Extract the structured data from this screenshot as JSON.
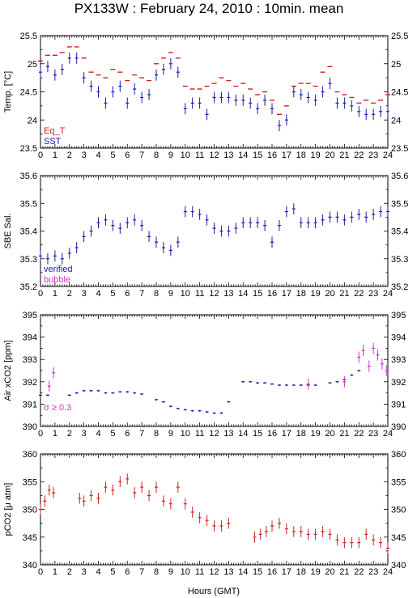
{
  "title": "PX133W : February 24, 2010 : 10min. mean",
  "colors": {
    "red": "#cc2222",
    "blue": "#1a1aaa",
    "magenta": "#cc33cc",
    "axis": "#000000"
  },
  "chart_data": [
    {
      "type": "scatter",
      "ylabel": "Temp. [°C]",
      "xlabel": "Hours (GMT)",
      "xlim": [
        0,
        24
      ],
      "ylim": [
        23.5,
        25.5
      ],
      "yticks": [
        "23.5",
        "24",
        "24.5",
        "25",
        "25.5"
      ],
      "xticks": [
        "0",
        "1",
        "2",
        "3",
        "4",
        "5",
        "6",
        "7",
        "8",
        "9",
        "10",
        "11",
        "12",
        "13",
        "14",
        "15",
        "16",
        "17",
        "18",
        "19",
        "20",
        "21",
        "22",
        "23",
        "24"
      ],
      "legend": [
        "Eq_T",
        "SST"
      ],
      "legend_position": "bottom-left",
      "series": [
        {
          "name": "Eq_T",
          "color": "#cc2222",
          "x": [
            0,
            0.5,
            1,
            1.5,
            2,
            2.5,
            3,
            3.5,
            4,
            4.5,
            5,
            5.5,
            6,
            6.5,
            7,
            7.5,
            8,
            8.5,
            9,
            9.5,
            10,
            10.5,
            11,
            11.5,
            12,
            12.5,
            13,
            13.5,
            14,
            14.5,
            15,
            15.5,
            16,
            16.5,
            17,
            17.5,
            18,
            18.5,
            19,
            19.5,
            20,
            20.5,
            21,
            21.5,
            22,
            22.5,
            23,
            23.5,
            24
          ],
          "values": [
            25.05,
            25.15,
            25.15,
            25.2,
            25.3,
            25.3,
            25.1,
            24.85,
            24.8,
            24.75,
            24.9,
            24.85,
            24.7,
            24.8,
            24.75,
            24.7,
            25.0,
            25.1,
            25.2,
            25.1,
            24.6,
            24.55,
            24.55,
            24.6,
            24.65,
            24.75,
            24.7,
            24.6,
            24.65,
            24.55,
            24.45,
            24.5,
            24.35,
            24.1,
            24.25,
            24.6,
            24.65,
            24.65,
            24.6,
            24.85,
            24.95,
            24.5,
            24.45,
            24.4,
            24.3,
            24.35,
            24.3,
            24.35,
            24.45
          ]
        },
        {
          "name": "SST",
          "color": "#1a1aaa",
          "x": [
            0,
            0.5,
            1,
            1.5,
            2,
            2.5,
            3,
            3.5,
            4,
            4.5,
            5,
            5.5,
            6,
            6.5,
            7,
            7.5,
            8,
            8.5,
            9,
            9.5,
            10,
            10.5,
            11,
            11.5,
            12,
            12.5,
            13,
            13.5,
            14,
            14.5,
            15,
            15.5,
            16,
            16.5,
            17,
            17.5,
            18,
            18.5,
            19,
            19.5,
            20,
            20.5,
            21,
            21.5,
            22,
            22.5,
            23,
            23.5,
            24
          ],
          "values": [
            24.85,
            24.95,
            24.8,
            24.9,
            25.1,
            25.1,
            24.75,
            24.6,
            24.5,
            24.3,
            24.5,
            24.6,
            24.3,
            24.55,
            24.4,
            24.45,
            24.8,
            24.9,
            25.0,
            24.85,
            24.2,
            24.3,
            24.3,
            24.1,
            24.4,
            24.4,
            24.4,
            24.35,
            24.35,
            24.3,
            24.2,
            24.35,
            24.2,
            23.9,
            24.0,
            24.5,
            24.45,
            24.4,
            24.35,
            24.5,
            24.65,
            24.3,
            24.3,
            24.25,
            24.15,
            24.1,
            24.1,
            24.15,
            24.15
          ]
        }
      ]
    },
    {
      "type": "scatter",
      "ylabel": "SBE Sal.",
      "xlim": [
        0,
        24
      ],
      "ylim": [
        35.2,
        35.6
      ],
      "yticks": [
        "35.2",
        "35.3",
        "35.4",
        "35.5",
        "35.6"
      ],
      "legend": [
        "verified",
        "bubble"
      ],
      "legend_position": "bottom-left",
      "series": [
        {
          "name": "verified",
          "color": "#1a1aaa",
          "x": [
            0,
            0.5,
            1,
            1.5,
            2,
            2.5,
            3,
            3.5,
            4,
            4.5,
            5,
            5.5,
            6,
            6.5,
            7,
            7.5,
            8,
            8.5,
            9,
            9.5,
            10,
            10.5,
            11,
            11.5,
            12,
            12.5,
            13,
            13.5,
            14,
            14.5,
            15,
            15.5,
            16,
            16.5,
            17,
            17.5,
            18,
            18.5,
            19,
            19.5,
            20,
            20.5,
            21,
            21.5,
            22,
            22.5,
            23,
            23.5,
            24
          ],
          "values": [
            35.31,
            35.3,
            35.31,
            35.3,
            35.32,
            35.34,
            35.38,
            35.4,
            35.43,
            35.44,
            35.42,
            35.41,
            35.43,
            35.44,
            35.42,
            35.38,
            35.36,
            35.34,
            35.33,
            35.36,
            35.47,
            35.47,
            35.46,
            35.44,
            35.41,
            35.4,
            35.4,
            35.41,
            35.43,
            35.43,
            35.43,
            35.42,
            35.36,
            35.42,
            35.47,
            35.48,
            35.43,
            35.43,
            35.43,
            35.44,
            35.45,
            35.45,
            35.44,
            35.45,
            35.46,
            35.45,
            35.46,
            35.47,
            35.47
          ]
        }
      ]
    },
    {
      "type": "scatter",
      "ylabel": "Air xCO2 [ppm]",
      "xlim": [
        0,
        24
      ],
      "ylim": [
        390,
        395
      ],
      "yticks": [
        "390",
        "391",
        "392",
        "393",
        "394",
        "395"
      ],
      "annotation": "σ ≥ 0.3",
      "series": [
        {
          "name": "",
          "color": "#1a1aaa",
          "x": [
            0,
            0.5,
            2,
            2.5,
            3,
            3.5,
            4,
            4.5,
            5,
            5.5,
            6,
            6.5,
            7,
            8,
            8.5,
            9,
            9.5,
            10,
            10.5,
            11,
            11.5,
            12,
            12.5,
            13,
            14,
            14.5,
            15,
            15.5,
            16,
            16.5,
            17,
            17.5,
            18,
            18.5,
            19,
            20,
            20.5,
            21,
            21.5,
            22
          ],
          "values": [
            391.4,
            391.4,
            391.4,
            391.5,
            391.6,
            391.6,
            391.6,
            391.5,
            391.5,
            391.55,
            391.55,
            391.5,
            391.45,
            391.2,
            391.1,
            390.9,
            390.8,
            390.75,
            390.7,
            390.7,
            390.65,
            390.6,
            390.6,
            391.1,
            392.0,
            392.0,
            391.95,
            391.95,
            391.9,
            391.85,
            391.85,
            391.85,
            391.85,
            391.85,
            391.85,
            391.95,
            392.0,
            392.1,
            392.3,
            392.5
          ]
        },
        {
          "name": "σ ≥ 0.3",
          "color": "#cc33cc",
          "x": [
            0.6,
            0.9,
            18.5,
            21,
            22,
            22.3,
            22.7,
            23,
            23.3,
            23.6,
            23.9
          ],
          "values": [
            391.8,
            392.4,
            391.9,
            392.0,
            393.1,
            393.4,
            392.7,
            393.5,
            393.2,
            392.8,
            392.5
          ]
        }
      ]
    },
    {
      "type": "scatter",
      "ylabel": "pCO2 [μ atm]",
      "xlabel": "Hours (GMT)",
      "xlim": [
        0,
        24
      ],
      "ylim": [
        340,
        360
      ],
      "yticks": [
        "340",
        "345",
        "350",
        "355",
        "360"
      ],
      "series": [
        {
          "name": "",
          "color": "#cc2222",
          "x": [
            0,
            0.3,
            0.6,
            0.9,
            2.7,
            3,
            3.5,
            4,
            4.5,
            5,
            5.5,
            6,
            6.5,
            7,
            7.5,
            8,
            8.5,
            9,
            9.5,
            10,
            10.5,
            11,
            11.5,
            12,
            12.5,
            13,
            14.8,
            15.2,
            15.6,
            16,
            16.5,
            17,
            17.5,
            18,
            18.5,
            19,
            19.5,
            20,
            20.5,
            21,
            21.5,
            22,
            22.5,
            23,
            23.5,
            24
          ],
          "values": [
            350,
            351.5,
            353.5,
            353,
            352,
            351.5,
            352.5,
            352,
            354,
            353.5,
            355,
            355.5,
            353,
            354,
            352.5,
            354,
            351.5,
            351,
            354,
            351,
            349.5,
            348.5,
            348,
            347,
            347,
            347.5,
            345,
            345.5,
            346,
            347,
            347.5,
            346.5,
            346,
            346,
            345.5,
            345.5,
            346,
            345.5,
            344.5,
            344,
            344,
            344,
            345.5,
            344.5,
            344,
            343
          ]
        }
      ]
    }
  ],
  "xaxis_label": "Hours (GMT)"
}
